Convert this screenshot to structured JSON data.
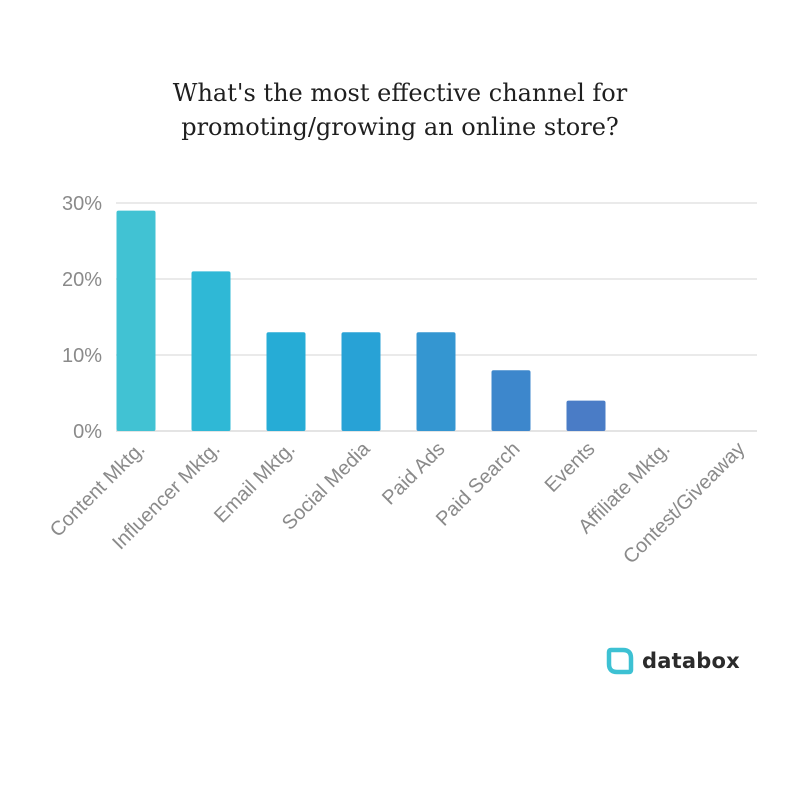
{
  "title_lines": [
    "What's the most effective channel for",
    "promoting/growing an online store?"
  ],
  "brand": {
    "name": "databox",
    "accent": "#3dc1d3"
  },
  "chart_data": {
    "type": "bar",
    "title": "What's the most effective channel for promoting/growing an online store?",
    "categories": [
      "Content Mktg.",
      "Influencer Mktg.",
      "Email Mktg.",
      "Social Media",
      "Paid Ads",
      "Paid Search",
      "Events",
      "Affiliate Mktg.",
      "Contest/Giveaway"
    ],
    "values": [
      29,
      21,
      13,
      13,
      13,
      8,
      4,
      0,
      0
    ],
    "unit": "%",
    "ylim": [
      0,
      30
    ],
    "yticks": [
      0,
      10,
      20,
      30
    ],
    "ytick_labels": [
      "0%",
      "10%",
      "20%",
      "30%"
    ],
    "grid": true,
    "legend": "none",
    "bar_colors": [
      "#41c2d3",
      "#2fb8d6",
      "#26acd6",
      "#28a2d6",
      "#3496d1",
      "#3d87cc",
      "#4a7cc6",
      "#4a7cc6",
      "#4a7cc6"
    ],
    "grid_color": "#d6d6d6",
    "axis_color": "#c8c8c8"
  }
}
